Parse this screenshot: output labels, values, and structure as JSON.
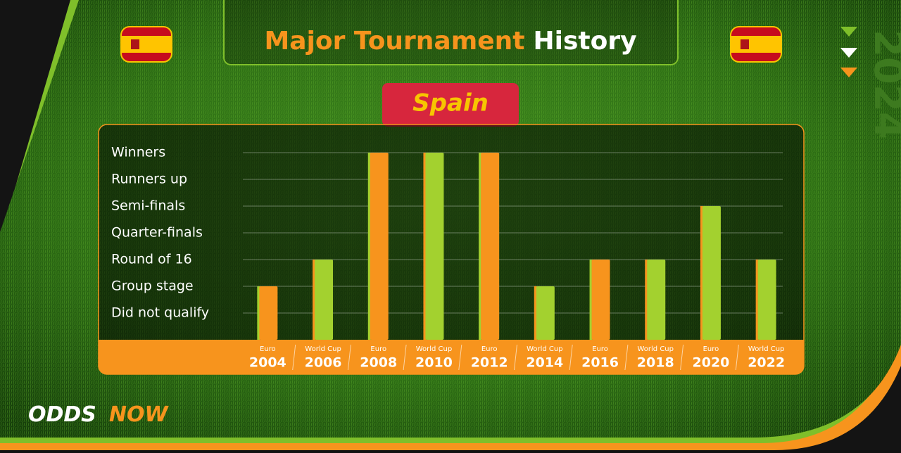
{
  "chart_data": {
    "type": "bar",
    "title": "Major Tournament",
    "title_highlight": "History",
    "subtitle": "Spain",
    "categories": [
      "2004",
      "2006",
      "2008",
      "2010",
      "2012",
      "2014",
      "2016",
      "2018",
      "2020",
      "2022"
    ],
    "tournaments": [
      "Euro",
      "World Cup",
      "Euro",
      "World Cup",
      "Euro",
      "World Cup",
      "Euro",
      "World Cup",
      "Euro",
      "World Cup"
    ],
    "values": [
      2,
      3,
      7,
      7,
      7,
      2,
      3,
      3,
      5,
      3
    ],
    "colors": [
      "#f7941d",
      "#a3d12f",
      "#f7941d",
      "#a3d12f",
      "#f7941d",
      "#a3d12f",
      "#f7941d",
      "#a3d12f",
      "#a3d12f",
      "#a3d12f"
    ],
    "ylim": [
      0,
      7
    ],
    "yticks": [
      {
        "value": 1,
        "label": "Did not qualify"
      },
      {
        "value": 2,
        "label": "Group stage"
      },
      {
        "value": 3,
        "label": "Round of 16"
      },
      {
        "value": 4,
        "label": "Quarter-finals"
      },
      {
        "value": 5,
        "label": "Semi-finals"
      },
      {
        "value": 6,
        "label": "Runners up"
      },
      {
        "value": 7,
        "label": "Winners"
      }
    ],
    "grid": true
  },
  "branding": {
    "logo_left": "ODDS",
    "logo_right": "NOW",
    "year": "2024"
  }
}
